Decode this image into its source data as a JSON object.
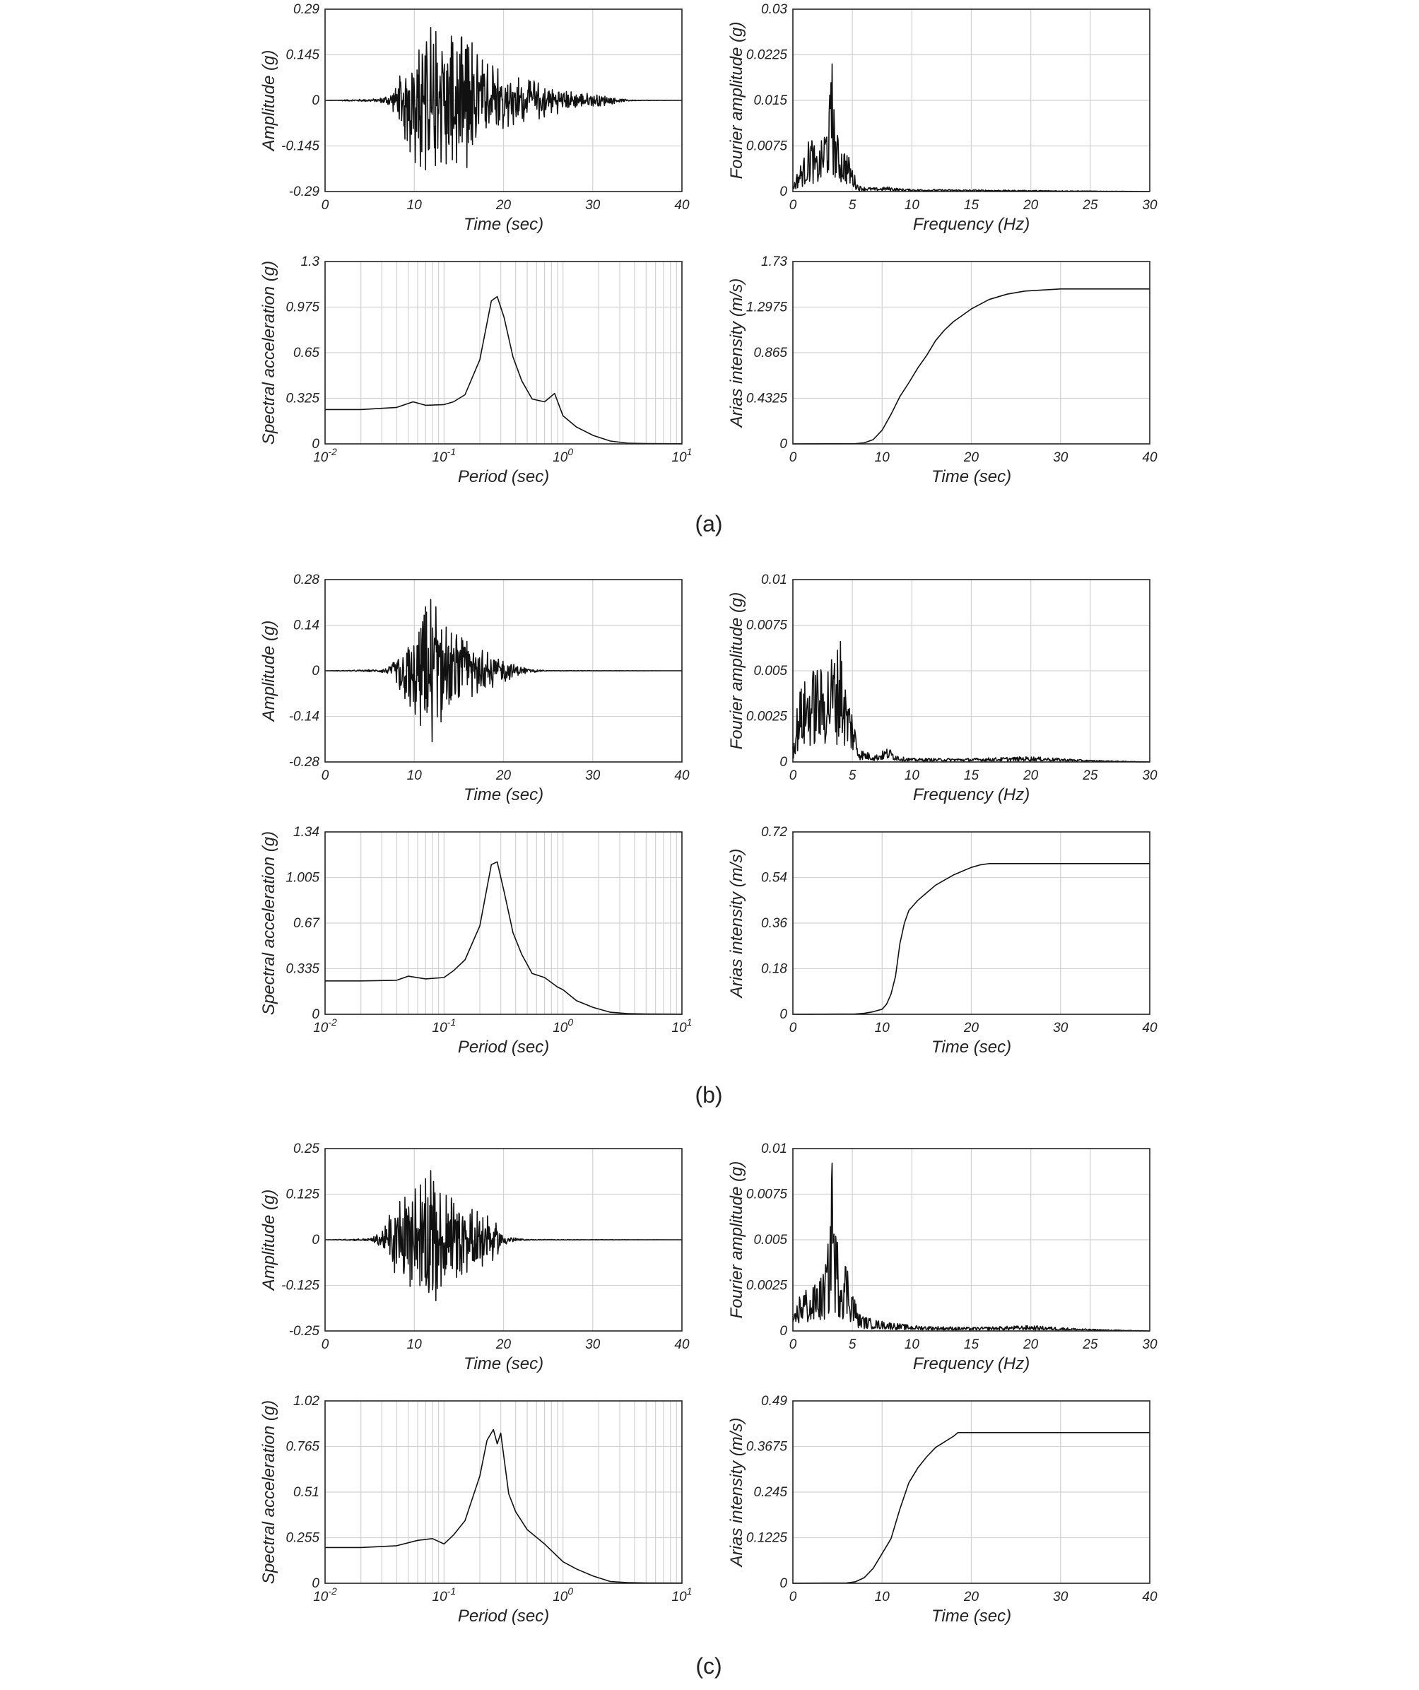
{
  "figure": {
    "captions": [
      "(a)",
      "(b)",
      "(c)"
    ]
  },
  "chart_data": [
    {
      "type": "line",
      "group": "a",
      "style": "dense",
      "xlabel": "Time (sec)",
      "ylabel": "Amplitude (g)",
      "xlim": [
        0,
        40
      ],
      "ylim": [
        -0.29,
        0.29
      ],
      "xticks": [
        "0",
        "10",
        "20",
        "30",
        "40"
      ],
      "yticks": [
        "-0.29",
        "-0.145",
        "0",
        "0.145",
        "0.29"
      ],
      "series": [
        {
          "x": [
            0,
            6,
            7,
            8,
            9,
            10,
            11,
            12,
            13,
            14,
            15,
            16,
            17,
            18,
            19,
            20,
            21,
            22,
            23,
            24,
            25,
            26,
            27,
            28,
            29,
            30,
            31,
            32,
            33,
            34,
            35,
            40
          ],
          "values": [
            0,
            0.006,
            0.02,
            0.05,
            0.13,
            0.2,
            0.22,
            0.24,
            0.2,
            0.21,
            0.2,
            0.22,
            0.15,
            0.12,
            0.11,
            0.09,
            0.08,
            0.07,
            0.065,
            0.06,
            0.05,
            0.045,
            0.035,
            0.03,
            0.025,
            0.025,
            0.02,
            0.015,
            0.006,
            0.003,
            0.001,
            0
          ]
        }
      ]
    },
    {
      "type": "line",
      "group": "a",
      "style": "spiky",
      "xlabel": "Frequency (Hz)",
      "ylabel": "Fourier amplitude (g)",
      "xlim": [
        0,
        30
      ],
      "ylim": [
        0,
        0.03
      ],
      "xticks": [
        "0",
        "5",
        "10",
        "15",
        "20",
        "25",
        "30"
      ],
      "yticks": [
        "0",
        "0.0075",
        "0.015",
        "0.0225",
        "0.03"
      ],
      "series": [
        {
          "x": [
            0,
            0.5,
            1,
            1.5,
            2,
            2.5,
            3,
            3.3,
            3.5,
            3.8,
            4,
            4.5,
            5,
            5.5,
            6,
            7,
            8,
            9,
            10,
            15,
            20,
            25,
            30
          ],
          "values": [
            0.001,
            0.004,
            0.006,
            0.01,
            0.006,
            0.009,
            0.014,
            0.021,
            0.012,
            0.009,
            0.008,
            0.007,
            0.004,
            0.001,
            0.0008,
            0.0006,
            0.0008,
            0.0005,
            0.0004,
            0.0003,
            0.0002,
            0.0001,
            0
          ]
        }
      ]
    },
    {
      "type": "line",
      "group": "a",
      "style": "smooth",
      "xscale": "log",
      "xlabel": "Period (sec)",
      "ylabel": "Spectral acceleration (g)",
      "xlim": [
        0.01,
        10
      ],
      "ylim": [
        0,
        1.3
      ],
      "xticks_base": "10",
      "xticks_exp": [
        "-2",
        "-1",
        "0",
        "1"
      ],
      "yticks": [
        "0",
        "0.325",
        "0.65",
        "0.975",
        "1.3"
      ],
      "series": [
        {
          "x": [
            0.01,
            0.02,
            0.04,
            0.055,
            0.07,
            0.1,
            0.12,
            0.15,
            0.2,
            0.25,
            0.28,
            0.32,
            0.38,
            0.45,
            0.55,
            0.7,
            0.85,
            1,
            1.3,
            1.8,
            2.5,
            3.5,
            5,
            10
          ],
          "values": [
            0.245,
            0.245,
            0.26,
            0.3,
            0.275,
            0.28,
            0.3,
            0.35,
            0.6,
            1.02,
            1.05,
            0.9,
            0.62,
            0.45,
            0.32,
            0.3,
            0.36,
            0.2,
            0.12,
            0.06,
            0.02,
            0.005,
            0.002,
            0.001
          ]
        }
      ]
    },
    {
      "type": "line",
      "group": "a",
      "style": "smooth",
      "xlabel": "Time (sec)",
      "ylabel": "Arias intensity (m/s)",
      "xlim": [
        0,
        40
      ],
      "ylim": [
        0,
        1.73
      ],
      "xticks": [
        "0",
        "10",
        "20",
        "30",
        "40"
      ],
      "yticks": [
        "0",
        "0.4325",
        "0.865",
        "1.2975",
        "1.73"
      ],
      "series": [
        {
          "x": [
            0,
            7,
            8,
            9,
            10,
            11,
            12,
            13,
            14,
            15,
            16,
            17,
            18,
            19,
            20,
            22,
            24,
            26,
            28,
            30,
            35,
            40
          ],
          "values": [
            0,
            0.002,
            0.01,
            0.04,
            0.13,
            0.28,
            0.45,
            0.58,
            0.72,
            0.84,
            0.98,
            1.08,
            1.16,
            1.22,
            1.28,
            1.37,
            1.42,
            1.45,
            1.46,
            1.47,
            1.47,
            1.47
          ]
        }
      ]
    },
    {
      "type": "line",
      "group": "b",
      "style": "dense",
      "xlabel": "Time (sec)",
      "ylabel": "Amplitude (g)",
      "xlim": [
        0,
        40
      ],
      "ylim": [
        -0.28,
        0.28
      ],
      "xticks": [
        "0",
        "10",
        "20",
        "30",
        "40"
      ],
      "yticks": [
        "-0.28",
        "-0.14",
        "0",
        "0.14",
        "0.28"
      ],
      "series": [
        {
          "x": [
            0,
            6,
            7,
            8,
            9,
            10,
            11,
            12,
            13,
            14,
            15,
            16,
            17,
            18,
            19,
            20,
            21,
            22,
            23,
            24,
            25,
            40
          ],
          "values": [
            0,
            0.004,
            0.012,
            0.04,
            0.09,
            0.13,
            0.19,
            0.23,
            0.16,
            0.12,
            0.11,
            0.09,
            0.07,
            0.06,
            0.05,
            0.04,
            0.025,
            0.015,
            0.007,
            0.003,
            0.001,
            0
          ]
        }
      ]
    },
    {
      "type": "line",
      "group": "b",
      "style": "spiky",
      "xlabel": "Frequency (Hz)",
      "ylabel": "Fourier amplitude (g)",
      "xlim": [
        0,
        30
      ],
      "ylim": [
        0,
        0.01
      ],
      "xticks": [
        "0",
        "5",
        "10",
        "15",
        "20",
        "25",
        "30"
      ],
      "yticks": [
        "0",
        "0.0025",
        "0.005",
        "0.0075",
        "0.01"
      ],
      "series": [
        {
          "x": [
            0,
            0.5,
            1,
            1.5,
            2,
            2.5,
            3,
            3.5,
            4,
            4.5,
            5,
            5.5,
            6,
            7,
            8,
            9,
            10,
            15,
            20,
            25,
            30
          ],
          "values": [
            0.001,
            0.004,
            0.0045,
            0.005,
            0.0055,
            0.005,
            0.0058,
            0.0062,
            0.0066,
            0.004,
            0.003,
            0.0008,
            0.0006,
            0.0004,
            0.0008,
            0.0003,
            0.0002,
            0.0002,
            0.0003,
            0.0001,
            0
          ]
        }
      ]
    },
    {
      "type": "line",
      "group": "b",
      "style": "smooth",
      "xscale": "log",
      "xlabel": "Period (sec)",
      "ylabel": "Spectral acceleration (g)",
      "xlim": [
        0.01,
        10
      ],
      "ylim": [
        0,
        1.34
      ],
      "xticks_base": "10",
      "xticks_exp": [
        "-2",
        "-1",
        "0",
        "1"
      ],
      "yticks": [
        "0",
        "0.335",
        "0.67",
        "1.005",
        "1.34"
      ],
      "series": [
        {
          "x": [
            0.01,
            0.02,
            0.04,
            0.05,
            0.07,
            0.1,
            0.12,
            0.15,
            0.2,
            0.25,
            0.28,
            0.32,
            0.38,
            0.45,
            0.55,
            0.7,
            0.9,
            1,
            1.3,
            1.8,
            2.5,
            3.5,
            5,
            10
          ],
          "values": [
            0.245,
            0.245,
            0.25,
            0.28,
            0.26,
            0.27,
            0.32,
            0.4,
            0.65,
            1.1,
            1.12,
            0.9,
            0.6,
            0.44,
            0.3,
            0.27,
            0.2,
            0.18,
            0.1,
            0.05,
            0.015,
            0.005,
            0.002,
            0.001
          ]
        }
      ]
    },
    {
      "type": "line",
      "group": "b",
      "style": "smooth",
      "xlabel": "Time (sec)",
      "ylabel": "Arias intensity (m/s)",
      "xlim": [
        0,
        40
      ],
      "ylim": [
        0,
        0.72
      ],
      "xticks": [
        "0",
        "10",
        "20",
        "30",
        "40"
      ],
      "yticks": [
        "0",
        "0.18",
        "0.36",
        "0.54",
        "0.72"
      ],
      "series": [
        {
          "x": [
            0,
            7,
            8,
            9,
            10,
            10.5,
            11,
            11.5,
            12,
            12.5,
            13,
            14,
            15,
            16,
            17,
            18,
            19,
            20,
            21,
            22,
            25,
            30,
            40
          ],
          "values": [
            0,
            0.001,
            0.004,
            0.01,
            0.02,
            0.04,
            0.08,
            0.15,
            0.28,
            0.36,
            0.41,
            0.45,
            0.48,
            0.51,
            0.53,
            0.55,
            0.565,
            0.58,
            0.59,
            0.595,
            0.595,
            0.595,
            0.595
          ]
        }
      ]
    },
    {
      "type": "line",
      "group": "c",
      "style": "dense",
      "xlabel": "Time (sec)",
      "ylabel": "Amplitude (g)",
      "xlim": [
        0,
        40
      ],
      "ylim": [
        -0.25,
        0.25
      ],
      "xticks": [
        "0",
        "10",
        "20",
        "30",
        "40"
      ],
      "yticks": [
        "-0.25",
        "-0.125",
        "0",
        "0.125",
        "0.25"
      ],
      "series": [
        {
          "x": [
            0,
            5,
            6,
            7,
            8,
            9,
            10,
            11,
            12,
            13,
            14,
            15,
            16,
            17,
            18,
            19,
            20,
            21,
            22,
            23,
            40
          ],
          "values": [
            0,
            0.004,
            0.02,
            0.06,
            0.1,
            0.12,
            0.14,
            0.16,
            0.2,
            0.13,
            0.12,
            0.1,
            0.09,
            0.08,
            0.07,
            0.055,
            0.02,
            0.008,
            0.003,
            0.001,
            0
          ]
        }
      ]
    },
    {
      "type": "line",
      "group": "c",
      "style": "spiky",
      "xlabel": "Frequency (Hz)",
      "ylabel": "Fourier amplitude (g)",
      "xlim": [
        0,
        30
      ],
      "ylim": [
        0,
        0.01
      ],
      "xticks": [
        "0",
        "5",
        "10",
        "15",
        "20",
        "25",
        "30"
      ],
      "yticks": [
        "0",
        "0.0025",
        "0.005",
        "0.0075",
        "0.01"
      ],
      "series": [
        {
          "x": [
            0,
            0.5,
            1,
            1.5,
            2,
            2.5,
            3,
            3.3,
            3.5,
            3.8,
            4,
            4.5,
            5,
            5.5,
            6,
            7,
            8,
            9,
            10,
            15,
            20,
            25,
            30
          ],
          "values": [
            0.0005,
            0.002,
            0.0025,
            0.002,
            0.003,
            0.003,
            0.005,
            0.0092,
            0.006,
            0.005,
            0.0042,
            0.004,
            0.0025,
            0.001,
            0.0008,
            0.0006,
            0.0005,
            0.0004,
            0.0003,
            0.0002,
            0.0003,
            0.0001,
            0
          ]
        }
      ]
    },
    {
      "type": "line",
      "group": "c",
      "style": "smooth",
      "xscale": "log",
      "xlabel": "Period (sec)",
      "ylabel": "Spectral acceleration (g)",
      "xlim": [
        0.01,
        10
      ],
      "ylim": [
        0,
        1.02
      ],
      "xticks_base": "10",
      "xticks_exp": [
        "-2",
        "-1",
        "0",
        "1"
      ],
      "yticks": [
        "0",
        "0.255",
        "0.51",
        "0.765",
        "1.02"
      ],
      "series": [
        {
          "x": [
            0.01,
            0.02,
            0.04,
            0.06,
            0.08,
            0.1,
            0.12,
            0.15,
            0.2,
            0.23,
            0.26,
            0.28,
            0.3,
            0.35,
            0.4,
            0.5,
            0.7,
            1,
            1.3,
            1.8,
            2.5,
            3.5,
            5,
            10
          ],
          "values": [
            0.2,
            0.2,
            0.21,
            0.24,
            0.25,
            0.22,
            0.27,
            0.35,
            0.6,
            0.8,
            0.86,
            0.78,
            0.84,
            0.5,
            0.4,
            0.3,
            0.22,
            0.12,
            0.08,
            0.04,
            0.01,
            0.004,
            0.002,
            0.001
          ]
        }
      ]
    },
    {
      "type": "line",
      "group": "c",
      "style": "smooth",
      "xlabel": "Time (sec)",
      "ylabel": "Arias intensity (m/s)",
      "xlim": [
        0,
        40
      ],
      "ylim": [
        0,
        0.49
      ],
      "xticks": [
        "0",
        "10",
        "20",
        "30",
        "40"
      ],
      "yticks": [
        "0",
        "0.1225",
        "0.245",
        "0.3675",
        "0.49"
      ],
      "series": [
        {
          "x": [
            0,
            6,
            7,
            8,
            9,
            10,
            11,
            12,
            13,
            14,
            15,
            16,
            17,
            18,
            18.5,
            19,
            20,
            25,
            30,
            40
          ],
          "values": [
            0,
            0.001,
            0.004,
            0.015,
            0.04,
            0.08,
            0.12,
            0.2,
            0.27,
            0.31,
            0.34,
            0.365,
            0.38,
            0.395,
            0.405,
            0.405,
            0.405,
            0.405,
            0.405,
            0.405
          ]
        }
      ]
    }
  ]
}
